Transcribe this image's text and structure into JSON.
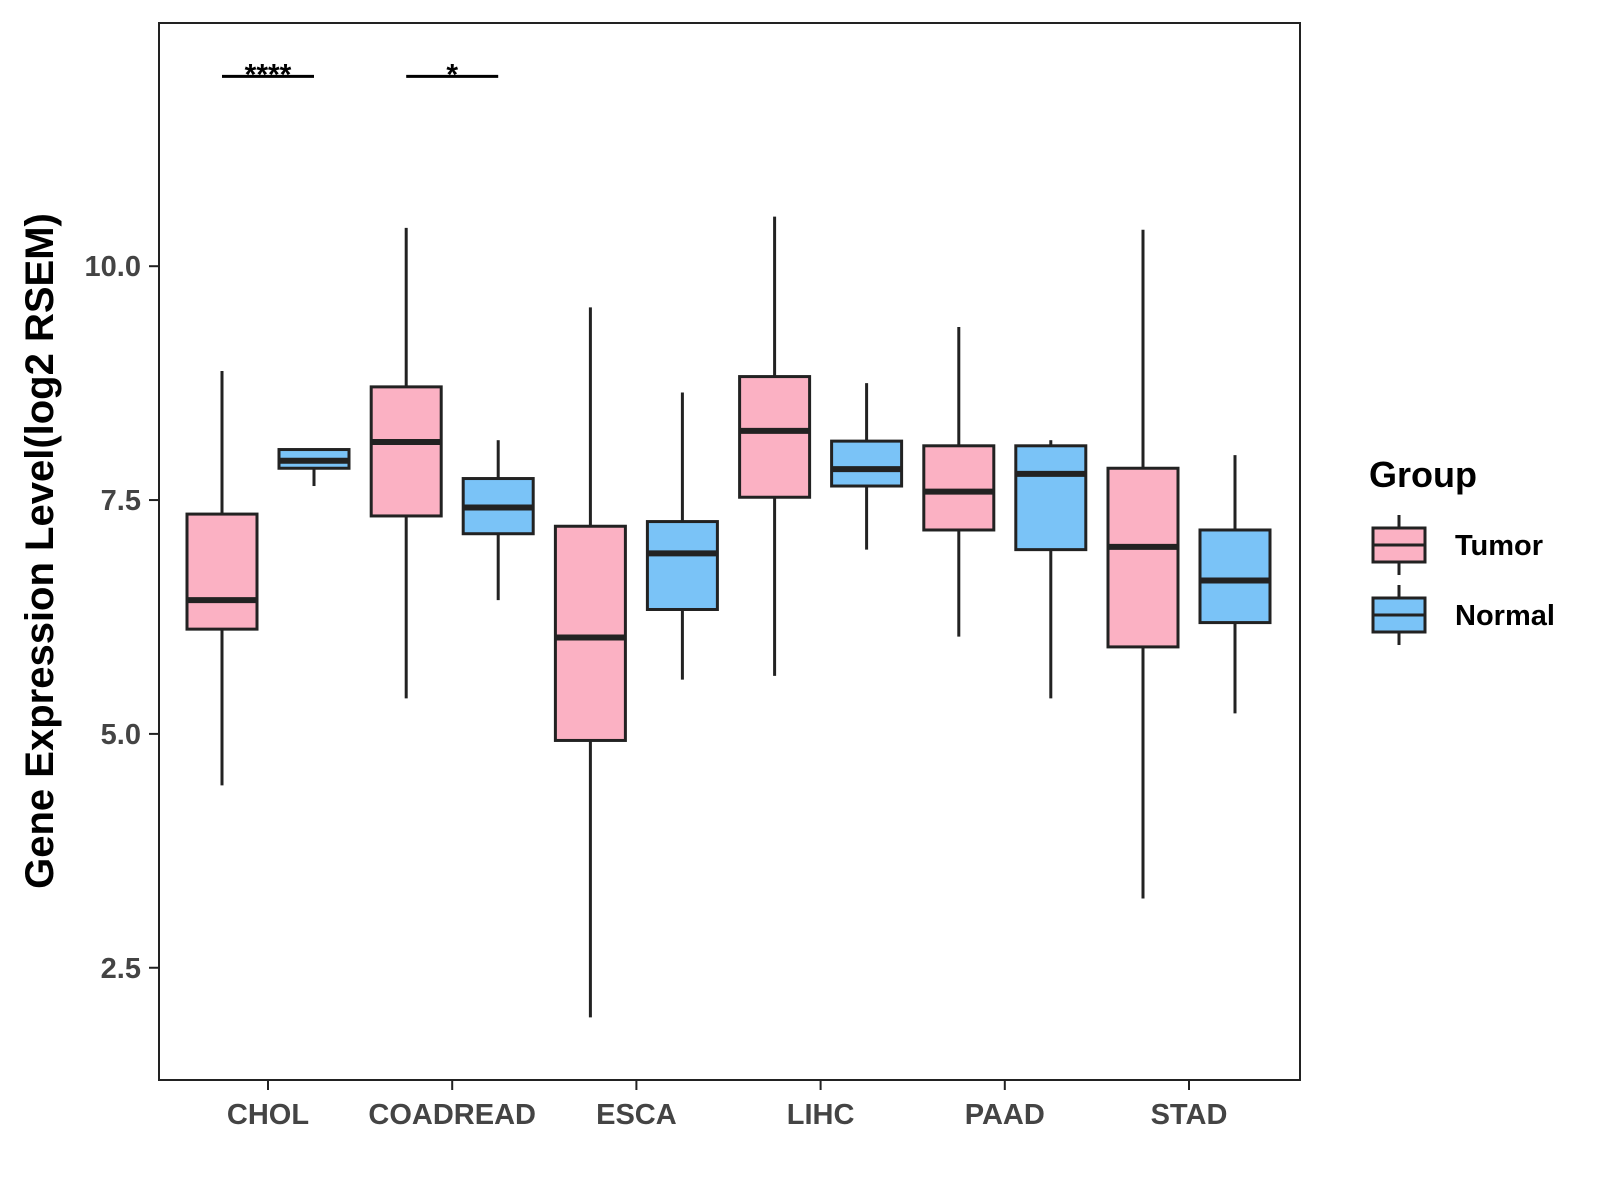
{
  "chart_data": {
    "type": "boxplot",
    "title": "",
    "xlabel": "",
    "ylabel": "Gene Expression Level(log2 RSEM)",
    "ylim": [
      1.3,
      12.6
    ],
    "yticks": [
      2.5,
      5.0,
      7.5,
      10.0
    ],
    "ytick_labels": [
      "2.5",
      "5.0",
      "7.5",
      "10.0"
    ],
    "categories": [
      "CHOL",
      "COADREAD",
      "ESCA",
      "LIHC",
      "PAAD",
      "STAD"
    ],
    "legend": {
      "title": "Group",
      "position": "right",
      "entries": [
        {
          "name": "Tumor",
          "color": "#FBB1C3"
        },
        {
          "name": "Normal",
          "color": "#7AC3F7"
        }
      ]
    },
    "series": [
      {
        "name": "Tumor",
        "color": "#FBB1C3",
        "boxes": [
          {
            "min": 4.45,
            "q1": 6.12,
            "median": 6.43,
            "q3": 7.35,
            "max": 8.88
          },
          {
            "min": 5.38,
            "q1": 7.33,
            "median": 8.12,
            "q3": 8.71,
            "max": 10.41
          },
          {
            "min": 1.97,
            "q1": 4.93,
            "median": 6.03,
            "q3": 7.22,
            "max": 9.56
          },
          {
            "min": 5.62,
            "q1": 7.53,
            "median": 8.24,
            "q3": 8.82,
            "max": 10.53
          },
          {
            "min": 6.04,
            "q1": 7.18,
            "median": 7.59,
            "q3": 8.08,
            "max": 9.35
          },
          {
            "min": 3.24,
            "q1": 5.93,
            "median": 7.0,
            "q3": 7.84,
            "max": 10.39
          }
        ]
      },
      {
        "name": "Normal",
        "color": "#7AC3F7",
        "boxes": [
          {
            "min": 7.65,
            "q1": 7.84,
            "median": 7.92,
            "q3": 8.04,
            "max": 8.04
          },
          {
            "min": 6.43,
            "q1": 7.14,
            "median": 7.42,
            "q3": 7.73,
            "max": 8.14
          },
          {
            "min": 5.58,
            "q1": 6.33,
            "median": 6.93,
            "q3": 7.27,
            "max": 8.65
          },
          {
            "min": 6.97,
            "q1": 7.65,
            "median": 7.83,
            "q3": 8.13,
            "max": 8.75
          },
          {
            "min": 5.38,
            "q1": 6.97,
            "median": 7.78,
            "q3": 8.08,
            "max": 8.14
          },
          {
            "min": 5.22,
            "q1": 6.19,
            "median": 6.64,
            "q3": 7.18,
            "max": 7.98
          }
        ]
      }
    ],
    "significance": [
      {
        "category": "CHOL",
        "label": "****",
        "y": 12.03
      },
      {
        "category": "COADREAD",
        "label": "*",
        "y": 12.03
      }
    ]
  }
}
